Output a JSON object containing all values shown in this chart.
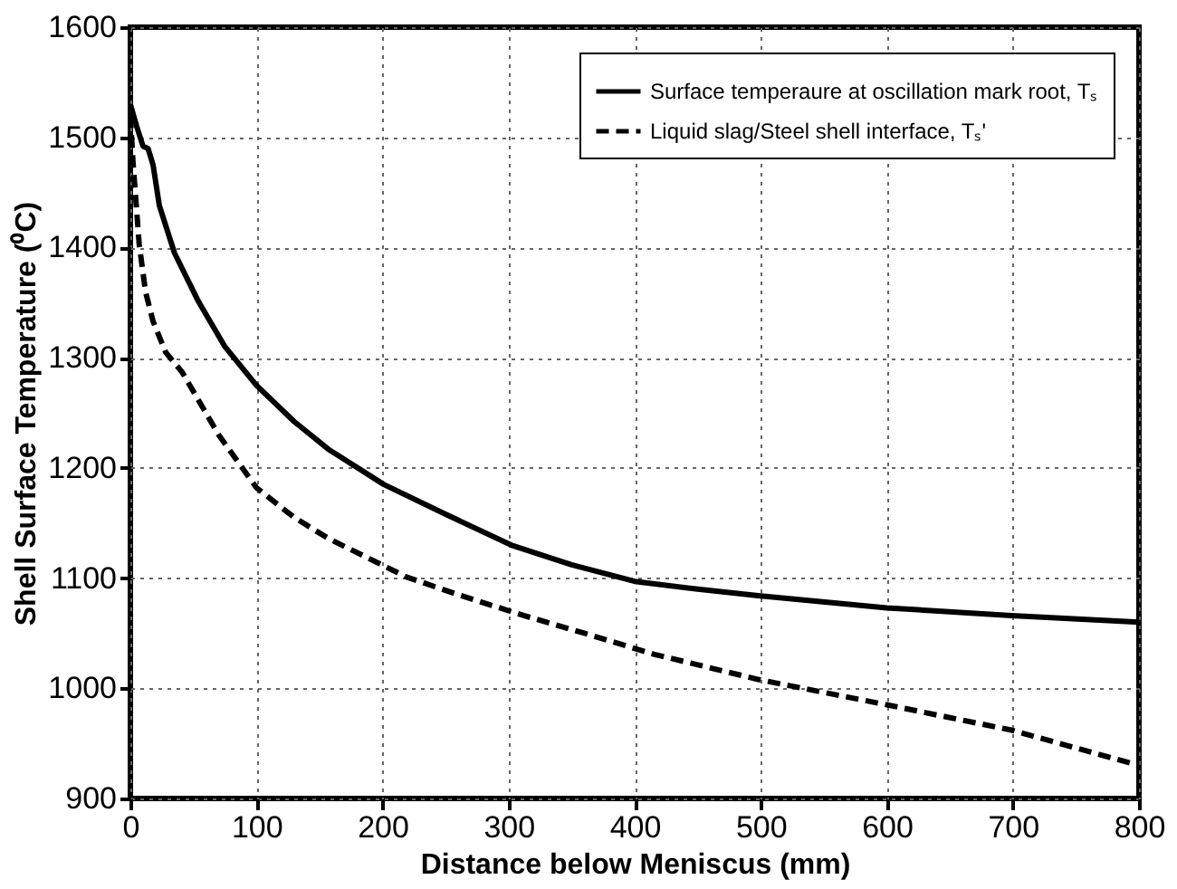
{
  "chart_data": {
    "type": "line",
    "xlabel": "Distance below Meniscus (mm)",
    "ylabel": "Shell Surface Temperature (⁰C)",
    "xlim": [
      0,
      800
    ],
    "xticks": [
      0,
      100,
      200,
      300,
      400,
      500,
      600,
      700,
      800
    ],
    "ylim": [
      900,
      1600
    ],
    "yticks": [
      900,
      1000,
      1100,
      1200,
      1300,
      1400,
      1500,
      1600
    ],
    "grid": true,
    "legend": "top right",
    "marker": "none",
    "series": [
      {
        "name": "Surface temperaure at oscillation mark root, Tₛ",
        "color": "#000000",
        "line_style": "solid",
        "x": [
          0,
          5,
          10,
          14,
          18,
          23,
          35,
          54,
          75,
          100,
          130,
          157,
          201,
          250,
          302,
          350,
          400,
          450,
          498,
          600,
          699,
          800
        ],
        "values": [
          1530,
          1510,
          1492,
          1490,
          1475,
          1438,
          1395,
          1351,
          1310,
          1275,
          1242,
          1217,
          1185,
          1158,
          1130,
          1112,
          1097,
          1090,
          1084,
          1073,
          1066,
          1060
        ]
      },
      {
        "name": "Liquid slag/Steel shell interface, Tₛ'",
        "color": "#000000",
        "line_style": "dashed",
        "x": [
          0,
          2,
          7,
          12,
          18,
          28,
          41,
          70,
          100,
          130,
          157,
          219,
          260,
          312,
          360,
          415,
          498,
          600,
          699,
          800
        ],
        "values": [
          1520,
          1479,
          1403,
          1360,
          1333,
          1305,
          1287,
          1230,
          1182,
          1155,
          1136,
          1101,
          1085,
          1066,
          1050,
          1031,
          1008,
          985,
          962,
          930
        ]
      }
    ]
  }
}
